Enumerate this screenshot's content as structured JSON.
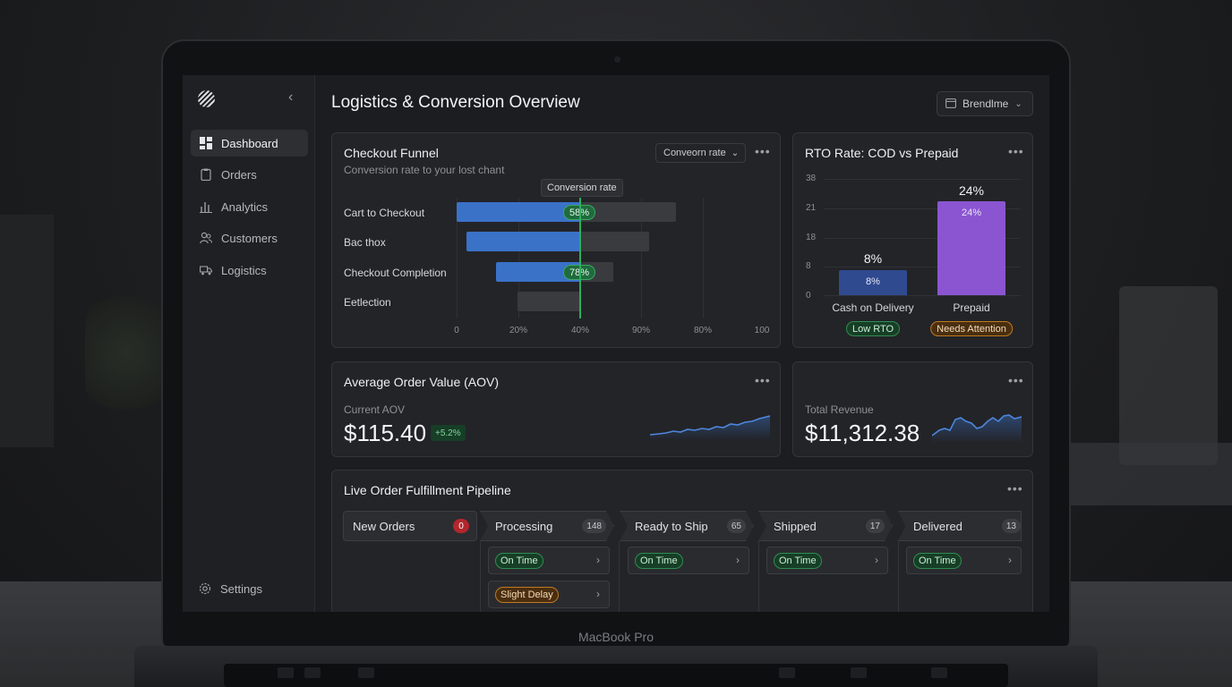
{
  "device": {
    "label": "MacBook Pro"
  },
  "sidebar": {
    "items": [
      {
        "label": "Dashboard",
        "icon": "dashboard-icon",
        "active": true
      },
      {
        "label": "Orders",
        "icon": "clipboard-icon"
      },
      {
        "label": "Analytics",
        "icon": "bar-chart-icon"
      },
      {
        "label": "Customers",
        "icon": "users-icon"
      },
      {
        "label": "Logistics",
        "icon": "truck-icon"
      }
    ],
    "settings_label": "Settings"
  },
  "header": {
    "title": "Logistics & Conversion Overview",
    "brand_select": "Brendlme"
  },
  "funnel": {
    "title": "Checkout Funnel",
    "subtitle": "Conversion rate to your lost chant",
    "dropdown": "Conveorn rate",
    "tooltip": "Conversion rate",
    "rows": [
      {
        "label": "Cart to Checkout",
        "pill": "58%"
      },
      {
        "label": "Bac thox",
        "pill": ""
      },
      {
        "label": "Checkout Completion",
        "pill": "78%"
      },
      {
        "label": "Eetlection",
        "pill": ""
      }
    ],
    "ticks": [
      "0",
      "20%",
      "40%",
      "90%",
      "80%",
      "100"
    ]
  },
  "rto": {
    "title": "RTO Rate: COD vs Prepaid",
    "y_ticks": [
      "38",
      "21",
      "18",
      "8",
      "0"
    ],
    "bars": [
      {
        "category": "Cash on Delivery",
        "value_label": "8%",
        "badge": "Low RTO",
        "color": "#2f4a8f"
      },
      {
        "category": "Prepaid",
        "value_label": "24%",
        "badge": "Needs Attention",
        "color": "#8b55d1"
      }
    ]
  },
  "aov": {
    "title": "Average Order Value (AOV)",
    "label": "Current AOV",
    "value": "$115.40",
    "delta": "+5.2%"
  },
  "revenue": {
    "label": "Total Revenue",
    "value": "$11,312.38"
  },
  "pipeline": {
    "title": "Live Order Fulfillment Pipeline",
    "stages": [
      {
        "label": "New Orders",
        "count": "0"
      },
      {
        "label": "Processing",
        "count": "148"
      },
      {
        "label": "Ready to Ship",
        "count": "65"
      },
      {
        "label": "Shipped",
        "count": "17"
      },
      {
        "label": "Delivered",
        "count": "13"
      }
    ],
    "cards": {
      "processing": [
        "On Time",
        "Slight Delay"
      ],
      "ready": [
        "On Time"
      ],
      "shipped": [
        "On Time"
      ],
      "delivered": [
        "On Time"
      ]
    }
  },
  "colors": {
    "accent_blue": "#3a72c8",
    "success": "#2fae5c",
    "warning": "#c07a22",
    "danger": "#b3262d"
  }
}
